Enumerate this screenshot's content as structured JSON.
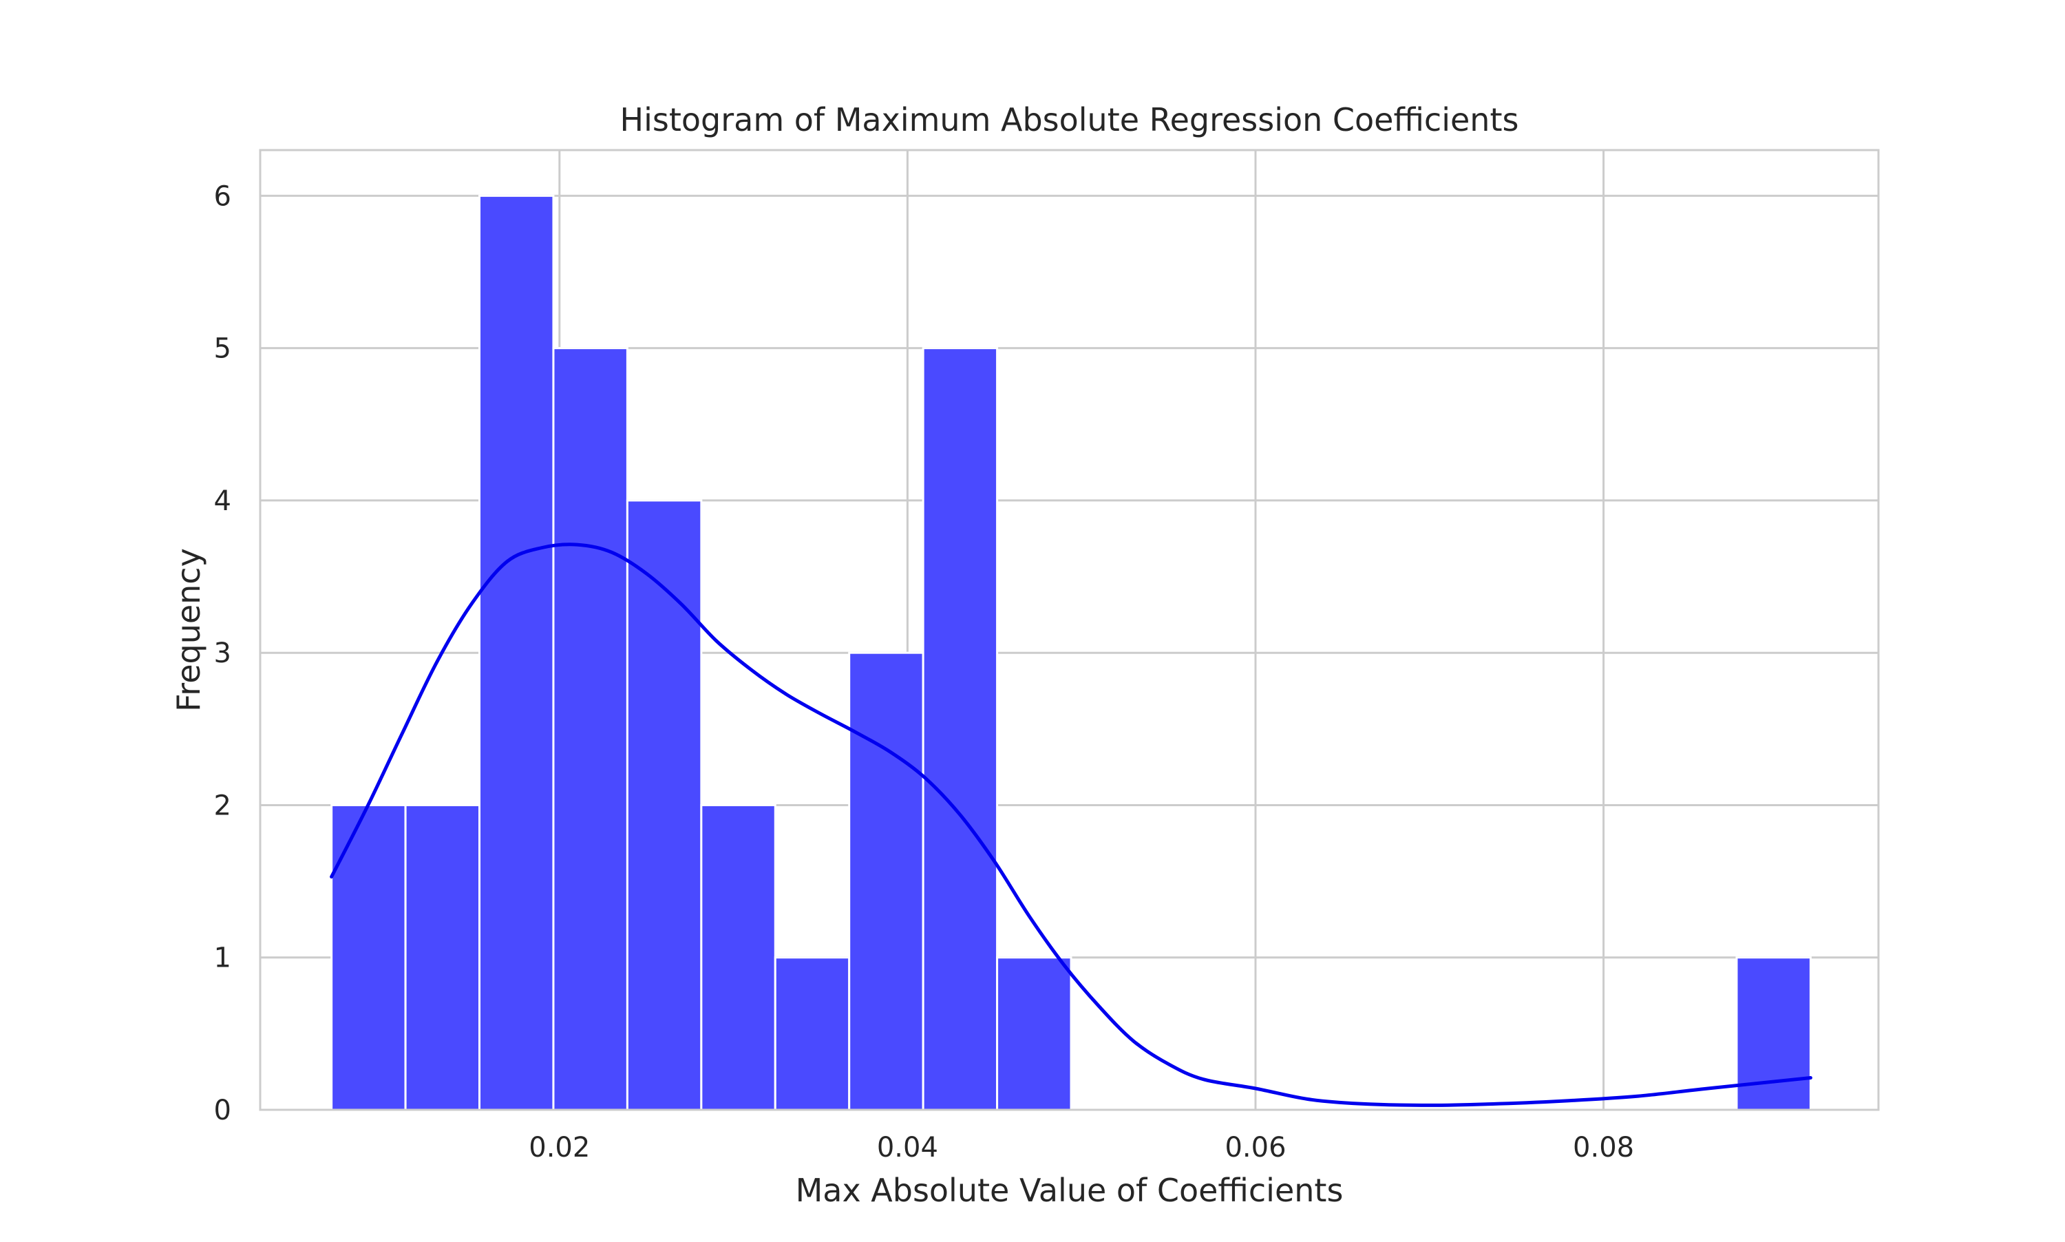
{
  "chart_data": {
    "type": "bar",
    "title": "Histogram of Maximum Absolute Regression Coefficients",
    "xlabel": "Max Absolute Value of Coefficients",
    "ylabel": "Frequency",
    "xlim": [
      0.0028,
      0.0958
    ],
    "ylim": [
      0,
      6.3
    ],
    "xticks": [
      0.02,
      0.04,
      0.06,
      0.08
    ],
    "xtick_labels": [
      "0.02",
      "0.04",
      "0.06",
      "0.08"
    ],
    "yticks": [
      0,
      1,
      2,
      3,
      4,
      5,
      6
    ],
    "ytick_labels": [
      "0",
      "1",
      "2",
      "3",
      "4",
      "5",
      "6"
    ],
    "grid": true,
    "bar_color": "#4a4aff",
    "kde_color": "#0000ee",
    "bin_edges": [
      0.0069,
      0.01115,
      0.0154,
      0.01965,
      0.0239,
      0.02815,
      0.0324,
      0.03665,
      0.0409,
      0.04515,
      0.0494,
      0.05365,
      0.0579,
      0.06215,
      0.0664,
      0.07065,
      0.0749,
      0.07915,
      0.0834,
      0.08765,
      0.0919
    ],
    "values": [
      2,
      2,
      6,
      5,
      4,
      2,
      1,
      3,
      5,
      1,
      0,
      0,
      0,
      0,
      0,
      0,
      0,
      0,
      0,
      1
    ],
    "kde": {
      "x": [
        0.0069,
        0.009,
        0.011,
        0.013,
        0.015,
        0.017,
        0.019,
        0.021,
        0.023,
        0.025,
        0.027,
        0.029,
        0.031,
        0.033,
        0.035,
        0.037,
        0.039,
        0.041,
        0.043,
        0.045,
        0.047,
        0.049,
        0.051,
        0.053,
        0.055,
        0.057,
        0.06,
        0.063,
        0.066,
        0.07,
        0.074,
        0.078,
        0.082,
        0.086,
        0.0919
      ],
      "y": [
        1.53,
        2.0,
        2.48,
        2.95,
        3.33,
        3.6,
        3.69,
        3.71,
        3.66,
        3.52,
        3.32,
        3.08,
        2.89,
        2.73,
        2.6,
        2.48,
        2.35,
        2.18,
        1.94,
        1.63,
        1.27,
        0.95,
        0.68,
        0.45,
        0.3,
        0.2,
        0.14,
        0.07,
        0.04,
        0.03,
        0.04,
        0.06,
        0.09,
        0.14,
        0.21
      ]
    }
  }
}
